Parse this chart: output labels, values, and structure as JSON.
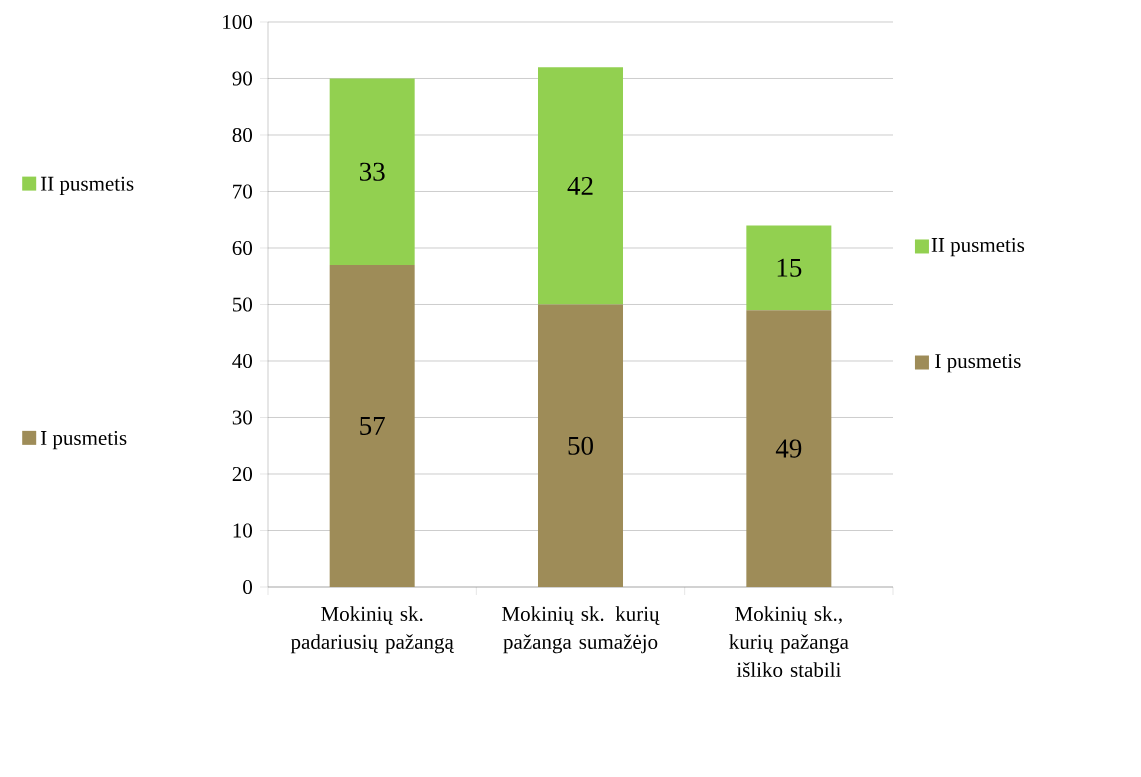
{
  "chart_data": {
    "type": "bar",
    "stacked": true,
    "categories": [
      "Mokinių sk. padariusių pažangą",
      "Mokinių sk. kurių pažanga sumažėjo",
      "Mokinių sk., kurių pažanga išliko stabili"
    ],
    "series": [
      {
        "name": "I pusmetis",
        "color": "#9e8c58",
        "values": [
          57,
          50,
          49
        ],
        "value_labels": [
          "57",
          "50",
          "49"
        ]
      },
      {
        "name": "II pusmetis",
        "color": "#92d050",
        "values": [
          33,
          42,
          15
        ],
        "value_labels": [
          "33",
          "42",
          "15"
        ]
      }
    ],
    "ylim": [
      0,
      100
    ],
    "yticks": [
      0,
      10,
      20,
      30,
      40,
      50,
      60,
      70,
      80,
      90,
      100
    ],
    "grid": "y",
    "legend": "right",
    "annotations": [
      "II pusmetis",
      "I pusmetis"
    ]
  }
}
